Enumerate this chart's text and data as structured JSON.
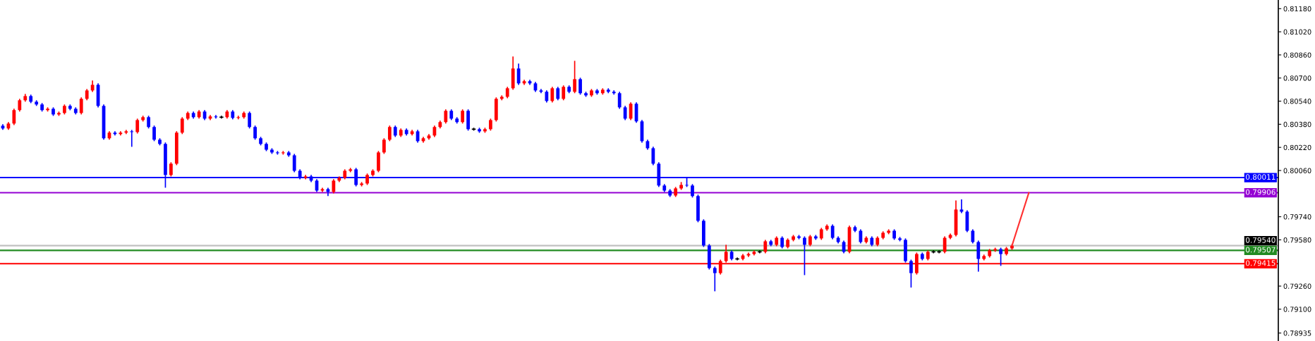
{
  "chart_data": {
    "type": "candlestick",
    "categories": [
      null,
      null,
      null,
      null,
      null,
      null,
      null,
      null,
      null,
      null,
      null,
      null,
      null,
      null,
      null,
      null,
      null,
      null,
      null,
      null,
      null,
      null,
      null,
      null,
      null,
      null,
      null,
      null,
      null,
      null,
      null,
      null,
      null,
      null,
      null,
      null,
      null,
      null,
      null,
      null,
      null,
      null,
      null,
      null,
      null,
      null,
      null,
      null,
      null,
      null,
      null,
      null,
      null,
      null,
      null,
      null,
      null,
      null,
      null,
      null,
      null,
      null,
      null,
      null,
      null,
      null,
      null,
      null,
      null,
      null,
      null,
      null,
      null,
      null,
      null,
      null,
      null,
      null,
      null,
      null,
      null,
      null,
      null,
      null,
      null,
      null,
      null,
      null,
      null,
      null,
      null,
      null,
      null,
      null,
      null,
      null,
      null,
      null,
      null,
      null,
      null,
      null,
      null,
      null,
      null,
      null,
      null,
      null,
      null,
      null,
      null,
      null,
      null,
      null,
      null,
      null,
      null,
      null,
      null,
      null,
      null,
      null,
      null,
      null,
      null,
      null,
      null,
      null,
      null,
      null,
      null,
      null,
      null,
      null,
      null,
      null,
      null,
      null,
      null,
      null,
      null,
      null,
      null,
      null,
      null,
      null,
      null,
      null,
      null,
      null,
      null,
      null,
      null,
      null,
      null,
      null,
      null,
      null,
      null,
      null,
      null,
      null,
      null,
      null,
      null,
      null,
      null,
      null,
      null,
      null,
      null,
      null,
      null,
      null,
      null,
      null,
      null,
      null,
      null,
      null,
      null,
      null,
      null,
      null,
      null,
      null,
      null,
      null,
      null,
      null,
      null,
      null,
      null,
      null,
      null,
      null,
      null,
      null,
      null,
      null,
      null,
      null,
      null,
      null,
      null,
      null,
      null,
      null,
      null,
      null,
      null,
      null,
      null,
      null,
      null,
      null,
      null,
      null,
      null,
      null,
      null,
      null,
      null,
      null,
      null,
      null,
      null,
      null
    ],
    "ohlc": [
      [
        0.8037,
        0.8038,
        0.80341,
        0.80351
      ],
      [
        0.80351,
        0.80395,
        0.80341,
        0.80385
      ],
      [
        0.80385,
        0.80488,
        0.80375,
        0.80478
      ],
      [
        0.80478,
        0.80556,
        0.80468,
        0.80546
      ],
      [
        0.80546,
        0.8059,
        0.80536,
        0.80575
      ],
      [
        0.80575,
        0.80585,
        0.80526,
        0.80536
      ],
      [
        0.80536,
        0.80546,
        0.80507,
        0.80517
      ],
      [
        0.80517,
        0.80527,
        0.80468,
        0.80478
      ],
      [
        0.80478,
        0.80497,
        0.80468,
        0.80487
      ],
      [
        0.80487,
        0.80497,
        0.80438,
        0.80448
      ],
      [
        0.80448,
        0.80468,
        0.80438,
        0.80458
      ],
      [
        0.80458,
        0.80517,
        0.80448,
        0.80507
      ],
      [
        0.80507,
        0.80517,
        0.80477,
        0.80487
      ],
      [
        0.80487,
        0.80497,
        0.80448,
        0.80458
      ],
      [
        0.80458,
        0.80566,
        0.80448,
        0.80556
      ],
      [
        0.80556,
        0.80624,
        0.80546,
        0.80614
      ],
      [
        0.80614,
        0.80683,
        0.80604,
        0.80653
      ],
      [
        0.80653,
        0.80663,
        0.80497,
        0.80507
      ],
      [
        0.80507,
        0.80517,
        0.80273,
        0.80283
      ],
      [
        0.80283,
        0.80332,
        0.80273,
        0.80322
      ],
      [
        0.80322,
        0.80332,
        0.80302,
        0.80312
      ],
      [
        0.80312,
        0.80332,
        0.80302,
        0.80322
      ],
      [
        0.80322,
        0.80341,
        0.80312,
        0.80331
      ],
      [
        0.80331,
        0.80341,
        0.80224,
        0.80326
      ],
      [
        0.80326,
        0.80419,
        0.80316,
        0.80409
      ],
      [
        0.80409,
        0.80439,
        0.80399,
        0.80429
      ],
      [
        0.80429,
        0.80439,
        0.80351,
        0.80361
      ],
      [
        0.80361,
        0.80371,
        0.80263,
        0.80273
      ],
      [
        0.80273,
        0.80283,
        0.80234,
        0.80244
      ],
      [
        0.80244,
        0.80254,
        0.79941,
        0.80029
      ],
      [
        0.80029,
        0.80117,
        0.80019,
        0.80107
      ],
      [
        0.80107,
        0.80332,
        0.80097,
        0.80322
      ],
      [
        0.80322,
        0.80429,
        0.80312,
        0.80419
      ],
      [
        0.80419,
        0.80468,
        0.80409,
        0.80458
      ],
      [
        0.80458,
        0.80468,
        0.80419,
        0.80429
      ],
      [
        0.80429,
        0.80478,
        0.80419,
        0.80468
      ],
      [
        0.80468,
        0.80478,
        0.80409,
        0.80419
      ],
      [
        0.80419,
        0.80444,
        0.80409,
        0.80434
      ],
      [
        0.80434,
        0.80444,
        0.80419,
        0.80429
      ],
      [
        0.80429,
        0.80439,
        0.80419,
        0.80429
      ],
      [
        0.80429,
        0.80478,
        0.80419,
        0.80468
      ],
      [
        0.80468,
        0.80478,
        0.80414,
        0.80424
      ],
      [
        0.80424,
        0.80439,
        0.80414,
        0.80429
      ],
      [
        0.80429,
        0.80468,
        0.80419,
        0.80458
      ],
      [
        0.80458,
        0.80468,
        0.80351,
        0.80361
      ],
      [
        0.80361,
        0.80371,
        0.80273,
        0.80283
      ],
      [
        0.80283,
        0.80293,
        0.80234,
        0.80244
      ],
      [
        0.80244,
        0.80254,
        0.80194,
        0.80204
      ],
      [
        0.80204,
        0.80214,
        0.80175,
        0.80185
      ],
      [
        0.80185,
        0.80195,
        0.8017,
        0.8018
      ],
      [
        0.8018,
        0.80195,
        0.8017,
        0.80185
      ],
      [
        0.80185,
        0.80195,
        0.80155,
        0.80165
      ],
      [
        0.80165,
        0.80175,
        0.80048,
        0.80058
      ],
      [
        0.80058,
        0.80068,
        0.79999,
        0.80009
      ],
      [
        0.80009,
        0.80029,
        0.79999,
        0.80019
      ],
      [
        0.80019,
        0.80029,
        0.7998,
        0.7999
      ],
      [
        0.7999,
        0.8,
        0.79911,
        0.79921
      ],
      [
        0.79921,
        0.79941,
        0.79911,
        0.79931
      ],
      [
        0.79931,
        0.79941,
        0.79883,
        0.79912
      ],
      [
        0.79912,
        0.8,
        0.79902,
        0.7999
      ],
      [
        0.7999,
        0.80019,
        0.7998,
        0.80009
      ],
      [
        0.80009,
        0.80068,
        0.79999,
        0.80058
      ],
      [
        0.80058,
        0.80078,
        0.80048,
        0.80068
      ],
      [
        0.80068,
        0.80078,
        0.7995,
        0.7996
      ],
      [
        0.7996,
        0.7998,
        0.7995,
        0.7997
      ],
      [
        0.7997,
        0.80039,
        0.7996,
        0.80029
      ],
      [
        0.80029,
        0.80068,
        0.80019,
        0.80058
      ],
      [
        0.80058,
        0.80195,
        0.80048,
        0.80185
      ],
      [
        0.80185,
        0.80283,
        0.80175,
        0.80273
      ],
      [
        0.80273,
        0.80371,
        0.80263,
        0.80361
      ],
      [
        0.80361,
        0.80371,
        0.80292,
        0.80302
      ],
      [
        0.80302,
        0.80351,
        0.80292,
        0.80341
      ],
      [
        0.80341,
        0.80351,
        0.80302,
        0.80312
      ],
      [
        0.80312,
        0.80341,
        0.80302,
        0.80331
      ],
      [
        0.80331,
        0.80341,
        0.80253,
        0.80263
      ],
      [
        0.80263,
        0.80293,
        0.80253,
        0.80283
      ],
      [
        0.80283,
        0.80312,
        0.80273,
        0.80302
      ],
      [
        0.80302,
        0.80371,
        0.80292,
        0.80361
      ],
      [
        0.80361,
        0.80405,
        0.80351,
        0.80395
      ],
      [
        0.80395,
        0.80483,
        0.80385,
        0.80473
      ],
      [
        0.80473,
        0.80483,
        0.80409,
        0.80419
      ],
      [
        0.80419,
        0.80429,
        0.80385,
        0.80395
      ],
      [
        0.80395,
        0.80483,
        0.80385,
        0.80473
      ],
      [
        0.80473,
        0.80483,
        0.80336,
        0.80346
      ],
      [
        0.80346,
        0.80356,
        0.80336,
        0.80346
      ],
      [
        0.80346,
        0.80356,
        0.80321,
        0.80331
      ],
      [
        0.80331,
        0.80356,
        0.80321,
        0.80346
      ],
      [
        0.80346,
        0.80419,
        0.80336,
        0.80409
      ],
      [
        0.80409,
        0.80566,
        0.80399,
        0.80556
      ],
      [
        0.80556,
        0.8058,
        0.80546,
        0.8057
      ],
      [
        0.8057,
        0.80639,
        0.8056,
        0.80629
      ],
      [
        0.80629,
        0.80849,
        0.80619,
        0.80766
      ],
      [
        0.80766,
        0.808,
        0.80653,
        0.80663
      ],
      [
        0.80663,
        0.80688,
        0.80653,
        0.80678
      ],
      [
        0.80678,
        0.80688,
        0.80653,
        0.80663
      ],
      [
        0.80663,
        0.80673,
        0.80604,
        0.80614
      ],
      [
        0.80614,
        0.80624,
        0.80595,
        0.80605
      ],
      [
        0.80605,
        0.80615,
        0.80531,
        0.80541
      ],
      [
        0.80541,
        0.80639,
        0.80531,
        0.80629
      ],
      [
        0.80629,
        0.80639,
        0.80546,
        0.80556
      ],
      [
        0.80556,
        0.80649,
        0.80546,
        0.80639
      ],
      [
        0.80639,
        0.80649,
        0.80595,
        0.80605
      ],
      [
        0.80605,
        0.80819,
        0.80595,
        0.80692
      ],
      [
        0.80692,
        0.80702,
        0.80585,
        0.80595
      ],
      [
        0.80595,
        0.80605,
        0.8057,
        0.8058
      ],
      [
        0.8058,
        0.80624,
        0.8057,
        0.80614
      ],
      [
        0.80614,
        0.80624,
        0.80585,
        0.80595
      ],
      [
        0.80595,
        0.80629,
        0.80585,
        0.80619
      ],
      [
        0.80619,
        0.80629,
        0.80595,
        0.80605
      ],
      [
        0.80605,
        0.80615,
        0.80585,
        0.80595
      ],
      [
        0.80595,
        0.80605,
        0.80487,
        0.80497
      ],
      [
        0.80497,
        0.80507,
        0.80409,
        0.80419
      ],
      [
        0.80419,
        0.80532,
        0.80409,
        0.80522
      ],
      [
        0.80522,
        0.80532,
        0.8039,
        0.804
      ],
      [
        0.804,
        0.8041,
        0.80253,
        0.80263
      ],
      [
        0.80263,
        0.80273,
        0.80204,
        0.80214
      ],
      [
        0.80214,
        0.80224,
        0.80097,
        0.80107
      ],
      [
        0.80107,
        0.80117,
        0.79946,
        0.79956
      ],
      [
        0.79956,
        0.79966,
        0.79911,
        0.79921
      ],
      [
        0.79921,
        0.79931,
        0.79877,
        0.79887
      ],
      [
        0.79887,
        0.79946,
        0.79877,
        0.79936
      ],
      [
        0.79936,
        0.7998,
        0.79926,
        0.7996
      ],
      [
        0.7996,
        0.80011,
        0.79946,
        0.79956
      ],
      [
        0.79956,
        0.79966,
        0.79873,
        0.79883
      ],
      [
        0.79883,
        0.79893,
        0.79702,
        0.79712
      ],
      [
        0.79712,
        0.79722,
        0.79531,
        0.79541
      ],
      [
        0.79541,
        0.79551,
        0.79375,
        0.79385
      ],
      [
        0.79385,
        0.79395,
        0.79224,
        0.7935
      ],
      [
        0.7935,
        0.79443,
        0.7934,
        0.79433
      ],
      [
        0.79433,
        0.79546,
        0.79423,
        0.79497
      ],
      [
        0.79497,
        0.79507,
        0.79438,
        0.79448
      ],
      [
        0.79448,
        0.79458,
        0.79438,
        0.79448
      ],
      [
        0.79448,
        0.79482,
        0.79438,
        0.79472
      ],
      [
        0.79472,
        0.79492,
        0.79462,
        0.79482
      ],
      [
        0.79482,
        0.79507,
        0.79472,
        0.79497
      ],
      [
        0.79497,
        0.79507,
        0.79487,
        0.79497
      ],
      [
        0.79497,
        0.7958,
        0.79487,
        0.7957
      ],
      [
        0.7957,
        0.7958,
        0.79536,
        0.79546
      ],
      [
        0.79546,
        0.79604,
        0.79536,
        0.79594
      ],
      [
        0.79594,
        0.79604,
        0.79521,
        0.79531
      ],
      [
        0.79531,
        0.7959,
        0.79521,
        0.7958
      ],
      [
        0.7958,
        0.79614,
        0.7957,
        0.79604
      ],
      [
        0.79604,
        0.79614,
        0.79584,
        0.79594
      ],
      [
        0.79594,
        0.79604,
        0.79336,
        0.79546
      ],
      [
        0.79546,
        0.79614,
        0.79536,
        0.79604
      ],
      [
        0.79604,
        0.79614,
        0.7958,
        0.7959
      ],
      [
        0.7959,
        0.79663,
        0.7958,
        0.79653
      ],
      [
        0.79653,
        0.79687,
        0.79643,
        0.79677
      ],
      [
        0.79677,
        0.79687,
        0.79584,
        0.79594
      ],
      [
        0.79594,
        0.79604,
        0.79555,
        0.79565
      ],
      [
        0.79565,
        0.79575,
        0.79487,
        0.79497
      ],
      [
        0.79497,
        0.79678,
        0.79487,
        0.79668
      ],
      [
        0.79668,
        0.79678,
        0.79633,
        0.79643
      ],
      [
        0.79643,
        0.79653,
        0.79555,
        0.79565
      ],
      [
        0.79565,
        0.79604,
        0.79555,
        0.79594
      ],
      [
        0.79594,
        0.79604,
        0.79536,
        0.79546
      ],
      [
        0.79546,
        0.79604,
        0.79536,
        0.79594
      ],
      [
        0.79594,
        0.79639,
        0.79584,
        0.79629
      ],
      [
        0.79629,
        0.79653,
        0.79619,
        0.79643
      ],
      [
        0.79643,
        0.79653,
        0.7958,
        0.7959
      ],
      [
        0.7959,
        0.796,
        0.7957,
        0.7958
      ],
      [
        0.7958,
        0.7959,
        0.79423,
        0.79433
      ],
      [
        0.79433,
        0.79443,
        0.7925,
        0.7935
      ],
      [
        0.7935,
        0.79492,
        0.7934,
        0.79482
      ],
      [
        0.79482,
        0.79492,
        0.79438,
        0.79448
      ],
      [
        0.79448,
        0.79507,
        0.79438,
        0.79497
      ],
      [
        0.79497,
        0.79507,
        0.79487,
        0.79497
      ],
      [
        0.79497,
        0.79507,
        0.79487,
        0.79497
      ],
      [
        0.79497,
        0.79604,
        0.79487,
        0.79594
      ],
      [
        0.79594,
        0.79624,
        0.79584,
        0.79614
      ],
      [
        0.79614,
        0.79853,
        0.79604,
        0.7979
      ],
      [
        0.7979,
        0.7986,
        0.79765,
        0.79775
      ],
      [
        0.79775,
        0.79785,
        0.79633,
        0.79643
      ],
      [
        0.79643,
        0.79653,
        0.79555,
        0.79565
      ],
      [
        0.79565,
        0.79575,
        0.7936,
        0.79448
      ],
      [
        0.79448,
        0.79478,
        0.79438,
        0.79468
      ],
      [
        0.79468,
        0.79517,
        0.79458,
        0.79507
      ],
      [
        0.79507,
        0.79526,
        0.79497,
        0.79516
      ],
      [
        0.79516,
        0.79526,
        0.794,
        0.79482
      ],
      [
        0.79482,
        0.79531,
        0.79472,
        0.79521
      ],
      [
        0.79521,
        0.7955,
        0.79511,
        0.7954
      ],
      null,
      null,
      null,
      null,
      null,
      null,
      null,
      null,
      null,
      null,
      null,
      null,
      null,
      null,
      null,
      null,
      null,
      null,
      null,
      null,
      null,
      null,
      null,
      null,
      null,
      null,
      null,
      null,
      null,
      null,
      null,
      null,
      null,
      null,
      null,
      null,
      null,
      null,
      null,
      null,
      null,
      null,
      null,
      null,
      null,
      null,
      null
    ],
    "colors": [
      "#0000ff",
      "#ff0000",
      "#ff0000",
      "#ff0000",
      "#ff0000",
      "#0000ff",
      "#0000ff",
      "#0000ff",
      "#ff0000",
      "#0000ff",
      "#ff0000",
      "#ff0000",
      "#0000ff",
      "#0000ff",
      "#ff0000",
      "#ff0000",
      "#ff0000",
      "#0000ff",
      "#0000ff",
      "#ff0000",
      "#0000ff",
      "#ff0000",
      "#ff0000",
      "#0000ff",
      "#ff0000",
      "#ff0000",
      "#0000ff",
      "#0000ff",
      "#0000ff",
      "#0000ff",
      "#ff0000",
      "#ff0000",
      "#ff0000",
      "#ff0000",
      "#0000ff",
      "#ff0000",
      "#0000ff",
      "#ff0000",
      "#0000ff",
      "#000000",
      "#ff0000",
      "#0000ff",
      "#ff0000",
      "#ff0000",
      "#0000ff",
      "#0000ff",
      "#0000ff",
      "#0000ff",
      "#0000ff",
      "#0000ff",
      "#ff0000",
      "#0000ff",
      "#0000ff",
      "#0000ff",
      "#ff0000",
      "#0000ff",
      "#0000ff",
      "#ff0000",
      "#0000ff",
      "#ff0000",
      "#ff0000",
      "#ff0000",
      "#ff0000",
      "#0000ff",
      "#ff0000",
      "#ff0000",
      "#ff0000",
      "#ff0000",
      "#ff0000",
      "#ff0000",
      "#0000ff",
      "#ff0000",
      "#0000ff",
      "#ff0000",
      "#0000ff",
      "#ff0000",
      "#ff0000",
      "#ff0000",
      "#ff0000",
      "#ff0000",
      "#0000ff",
      "#0000ff",
      "#ff0000",
      "#0000ff",
      "#000000",
      "#0000ff",
      "#ff0000",
      "#ff0000",
      "#ff0000",
      "#ff0000",
      "#ff0000",
      "#ff0000",
      "#0000ff",
      "#ff0000",
      "#0000ff",
      "#0000ff",
      "#0000ff",
      "#0000ff",
      "#ff0000",
      "#0000ff",
      "#ff0000",
      "#0000ff",
      "#ff0000",
      "#0000ff",
      "#0000ff",
      "#ff0000",
      "#0000ff",
      "#ff0000",
      "#0000ff",
      "#0000ff",
      "#0000ff",
      "#0000ff",
      "#ff0000",
      "#0000ff",
      "#0000ff",
      "#0000ff",
      "#0000ff",
      "#0000ff",
      "#0000ff",
      "#0000ff",
      "#ff0000",
      "#ff0000",
      "#0000ff",
      "#0000ff",
      "#0000ff",
      "#0000ff",
      "#0000ff",
      "#0000ff",
      "#ff0000",
      "#ff0000",
      "#0000ff",
      "#000000",
      "#ff0000",
      "#ff0000",
      "#ff0000",
      "#000000",
      "#ff0000",
      "#0000ff",
      "#ff0000",
      "#0000ff",
      "#ff0000",
      "#ff0000",
      "#0000ff",
      "#0000ff",
      "#ff0000",
      "#0000ff",
      "#ff0000",
      "#ff0000",
      "#0000ff",
      "#0000ff",
      "#0000ff",
      "#ff0000",
      "#0000ff",
      "#0000ff",
      "#ff0000",
      "#0000ff",
      "#ff0000",
      "#ff0000",
      "#ff0000",
      "#0000ff",
      "#0000ff",
      "#0000ff",
      "#0000ff",
      "#ff0000",
      "#0000ff",
      "#ff0000",
      "#000000",
      "#000000",
      "#ff0000",
      "#ff0000",
      "#ff0000",
      "#0000ff",
      "#0000ff",
      "#0000ff",
      "#0000ff",
      "#ff0000",
      "#ff0000",
      "#ff0000",
      "#0000ff",
      "#ff0000",
      "#ff0000",
      null,
      null,
      null,
      null,
      null,
      null,
      null,
      null,
      null,
      null,
      null,
      null,
      null,
      null,
      null,
      null,
      null,
      null,
      null,
      null,
      null,
      null,
      null,
      null,
      null,
      null,
      null,
      null,
      null,
      null,
      null,
      null,
      null,
      null,
      null,
      null,
      null,
      null,
      null,
      null,
      null,
      null,
      null,
      null,
      null,
      null,
      null
    ],
    "series": [
      {
        "type": "line",
        "color": "#ff3030",
        "values": [
          null,
          null,
          null,
          null,
          null,
          null,
          null,
          null,
          null,
          null,
          null,
          null,
          null,
          null,
          null,
          null,
          null,
          null,
          null,
          null,
          null,
          null,
          null,
          null,
          null,
          null,
          null,
          null,
          null,
          null,
          null,
          null,
          null,
          null,
          null,
          null,
          null,
          null,
          null,
          null,
          null,
          null,
          null,
          null,
          null,
          null,
          null,
          null,
          null,
          null,
          null,
          null,
          null,
          null,
          null,
          null,
          null,
          null,
          null,
          null,
          null,
          null,
          null,
          null,
          null,
          null,
          null,
          null,
          null,
          null,
          null,
          null,
          null,
          null,
          null,
          null,
          null,
          null,
          null,
          null,
          null,
          null,
          null,
          null,
          null,
          null,
          null,
          null,
          null,
          null,
          null,
          null,
          null,
          null,
          null,
          null,
          null,
          null,
          null,
          null,
          null,
          null,
          null,
          null,
          null,
          null,
          null,
          null,
          null,
          null,
          null,
          null,
          null,
          null,
          null,
          null,
          null,
          null,
          null,
          null,
          null,
          null,
          null,
          null,
          null,
          null,
          null,
          null,
          null,
          null,
          null,
          null,
          null,
          null,
          null,
          null,
          null,
          null,
          null,
          null,
          null,
          null,
          null,
          null,
          null,
          null,
          null,
          null,
          null,
          null,
          null,
          null,
          null,
          null,
          null,
          null,
          null,
          null,
          null,
          null,
          null,
          null,
          null,
          null,
          null,
          null,
          null,
          null,
          null,
          null,
          null,
          null,
          null,
          null,
          null,
          null,
          null,
          null,
          null,
          null,
          0.7954,
          null,
          null,
          0.79906,
          null,
          null,
          null,
          null,
          null,
          null,
          null,
          null,
          null,
          null,
          null,
          null,
          null,
          null,
          null,
          null,
          null,
          null,
          null,
          null,
          null,
          null,
          null,
          null,
          null,
          null,
          null,
          null,
          null,
          null,
          null,
          null,
          null,
          null,
          null,
          null,
          null,
          null,
          null,
          null,
          null,
          null,
          null,
          null
        ]
      }
    ],
    "ylim": [
      0.7888,
      0.8124
    ],
    "yticks": [
      {
        "value": 0.8118,
        "label": "0.81180"
      },
      {
        "value": 0.8102,
        "label": "0.81020"
      },
      {
        "value": 0.8086,
        "label": "0.80860"
      },
      {
        "value": 0.807,
        "label": "0.80700"
      },
      {
        "value": 0.8054,
        "label": "0.80540"
      },
      {
        "value": 0.8038,
        "label": "0.80380"
      },
      {
        "value": 0.8022,
        "label": "0.80220"
      },
      {
        "value": 0.8006,
        "label": "0.80060"
      },
      {
        "value": 0.7974,
        "label": "0.79740"
      },
      {
        "value": 0.7958,
        "label": "0.79580"
      },
      {
        "value": 0.7926,
        "label": "0.79260"
      },
      {
        "value": 0.791,
        "label": "0.79100"
      },
      {
        "value": 0.78935,
        "label": "0.78935"
      }
    ],
    "ref_lines": [
      {
        "axis": "y",
        "value": 0.80011,
        "label": "0.80011",
        "color": "#0000ff"
      },
      {
        "axis": "y",
        "value": 0.79906,
        "label": "0.79906",
        "color": "#9400d3"
      },
      {
        "axis": "y",
        "value": 0.7954,
        "label": "0.79540",
        "color": "#c0c0c0"
      },
      {
        "axis": "y",
        "value": 0.79507,
        "label": "0.79507",
        "color": "#228b22"
      },
      {
        "axis": "y",
        "value": 0.79415,
        "label": "0.79415",
        "color": "#ff0000"
      }
    ],
    "grid": false,
    "tick_labels": "y"
  }
}
